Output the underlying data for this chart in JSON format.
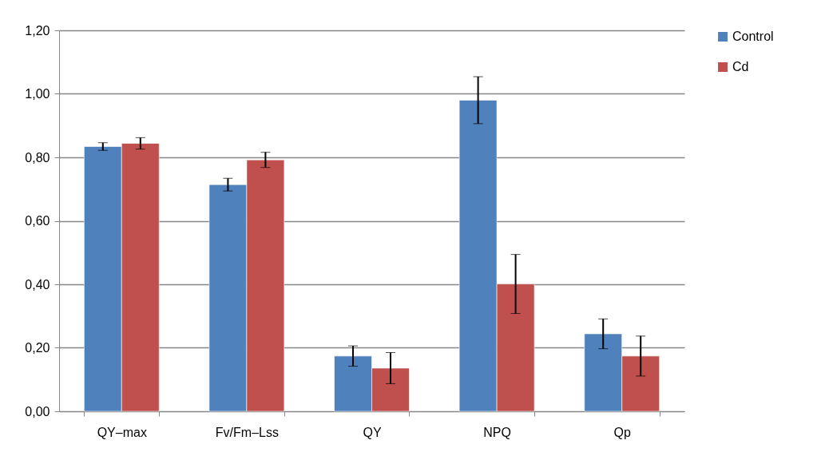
{
  "chart_data": {
    "type": "bar",
    "categories": [
      "QY–max",
      "Fv/Fm–Lss",
      "QY",
      "NPQ",
      "Qp"
    ],
    "series": [
      {
        "name": "Control",
        "color": "#4f81bd",
        "values": [
          0.834,
          0.714,
          0.174,
          0.98,
          0.244
        ],
        "errors": [
          0.012,
          0.02,
          0.032,
          0.074,
          0.047
        ]
      },
      {
        "name": "Cd",
        "color": "#c0504d",
        "values": [
          0.844,
          0.792,
          0.136,
          0.401,
          0.174
        ],
        "errors": [
          0.018,
          0.024,
          0.049,
          0.093,
          0.063
        ]
      }
    ],
    "ylim": [
      0,
      1.2
    ],
    "yticks": [
      {
        "value": 0,
        "label": "0,00"
      },
      {
        "value": 0.2,
        "label": "0,20"
      },
      {
        "value": 0.4,
        "label": "0,40"
      },
      {
        "value": 0.6,
        "label": "0,60"
      },
      {
        "value": 0.8,
        "label": "0,80"
      },
      {
        "value": 1.0,
        "label": "1,00"
      },
      {
        "value": 1.2,
        "label": "1,20"
      }
    ],
    "grid": "y",
    "legend": "right"
  }
}
